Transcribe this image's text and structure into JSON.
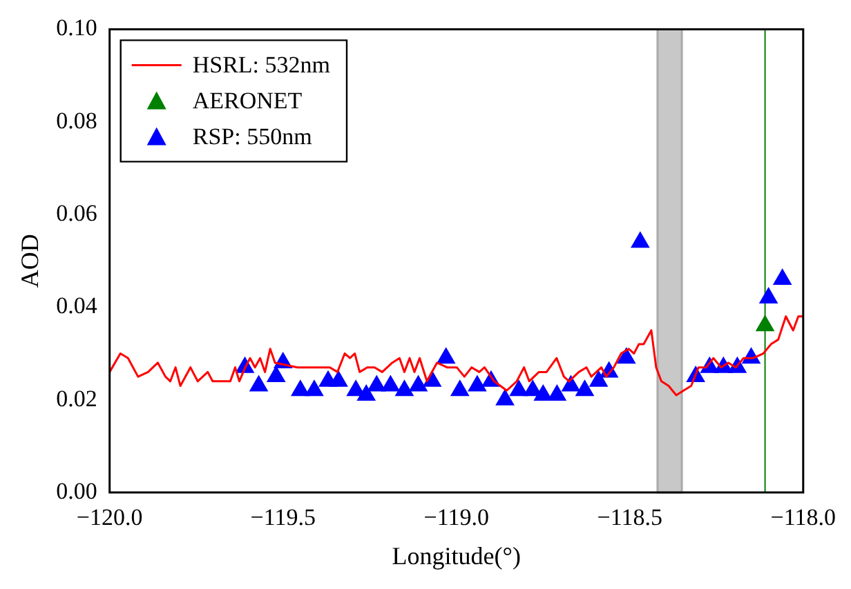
{
  "chart_data": {
    "type": "line",
    "xlabel": "Longitude(°)",
    "ylabel": "AOD",
    "legend": "top left",
    "grid": false,
    "marker": "triangle",
    "xlim": [
      -120,
      -118
    ],
    "ylim": [
      0,
      0.1
    ],
    "xticks": [
      {
        "value": -120,
        "label": "−120.0"
      },
      {
        "value": -119.5,
        "label": "−119.5"
      },
      {
        "value": -119,
        "label": "−119.0"
      },
      {
        "value": -118.5,
        "label": "−118.5"
      },
      {
        "value": -118,
        "label": "−118.0"
      }
    ],
    "yticks": [
      {
        "value": 0,
        "label": "0.00"
      },
      {
        "value": 0.02,
        "label": "0.02"
      },
      {
        "value": 0.04,
        "label": "0.04"
      },
      {
        "value": 0.06,
        "label": "0.06"
      },
      {
        "value": 0.08,
        "label": "0.08"
      },
      {
        "value": 0.1,
        "label": "0.10"
      }
    ],
    "bands": [
      {
        "axis": "x",
        "from": -118.42,
        "to": -118.35,
        "color": "#c8c8c8"
      }
    ],
    "ref_lines": [
      {
        "axis": "x",
        "value": -118.11,
        "color": "#008000"
      }
    ],
    "series": [
      {
        "name": "HSRL: 532nm",
        "color": "#ff0000",
        "marker": "none",
        "x": [
          -120.0,
          -119.969,
          -119.947,
          -119.918,
          -119.889,
          -119.861,
          -119.839,
          -119.825,
          -119.81,
          -119.796,
          -119.767,
          -119.746,
          -119.717,
          -119.703,
          -119.681,
          -119.652,
          -119.638,
          -119.626,
          -119.609,
          -119.595,
          -119.581,
          -119.566,
          -119.552,
          -119.537,
          -119.523,
          -119.458,
          -119.387,
          -119.365,
          -119.343,
          -119.322,
          -119.307,
          -119.293,
          -119.279,
          -119.257,
          -119.236,
          -119.214,
          -119.185,
          -119.164,
          -119.15,
          -119.135,
          -119.121,
          -119.106,
          -119.085,
          -119.056,
          -119.027,
          -118.999,
          -118.977,
          -118.956,
          -118.934,
          -118.919,
          -118.891,
          -118.855,
          -118.826,
          -118.805,
          -118.79,
          -118.762,
          -118.74,
          -118.711,
          -118.69,
          -118.675,
          -118.647,
          -118.625,
          -118.611,
          -118.582,
          -118.568,
          -118.546,
          -118.525,
          -118.503,
          -118.488,
          -118.474,
          -118.46,
          -118.438,
          -118.424,
          -118.409,
          -118.388,
          -118.366,
          -118.345,
          -118.323,
          -118.302,
          -118.28,
          -118.259,
          -118.237,
          -118.216,
          -118.194,
          -118.172,
          -118.144,
          -118.115,
          -118.093,
          -118.072,
          -118.05,
          -118.029,
          -118.014,
          -118.0
        ],
        "values": [
          0.026,
          0.03,
          0.029,
          0.025,
          0.026,
          0.028,
          0.025,
          0.024,
          0.027,
          0.023,
          0.027,
          0.024,
          0.026,
          0.024,
          0.024,
          0.024,
          0.027,
          0.024,
          0.027,
          0.029,
          0.027,
          0.029,
          0.026,
          0.031,
          0.028,
          0.027,
          0.027,
          0.027,
          0.026,
          0.03,
          0.029,
          0.03,
          0.026,
          0.027,
          0.027,
          0.026,
          0.028,
          0.029,
          0.026,
          0.029,
          0.026,
          0.029,
          0.024,
          0.028,
          0.027,
          0.027,
          0.025,
          0.027,
          0.026,
          0.027,
          0.024,
          0.022,
          0.024,
          0.027,
          0.024,
          0.026,
          0.026,
          0.029,
          0.025,
          0.024,
          0.026,
          0.027,
          0.025,
          0.027,
          0.025,
          0.027,
          0.03,
          0.031,
          0.03,
          0.032,
          0.032,
          0.035,
          0.027,
          0.024,
          0.023,
          0.021,
          0.022,
          0.023,
          0.027,
          0.027,
          0.029,
          0.027,
          0.028,
          0.027,
          0.029,
          0.029,
          0.03,
          0.032,
          0.033,
          0.038,
          0.035,
          0.038,
          0.038
        ]
      },
      {
        "name": "AERONET",
        "type": "scatter",
        "color": "#008000",
        "x": [
          -118.11
        ],
        "values": [
          0.036
        ]
      },
      {
        "name": "RSP: 550nm",
        "type": "scatter",
        "color": "#0000ff",
        "x": [
          -119.61,
          -119.57,
          -119.52,
          -119.5,
          -119.45,
          -119.41,
          -119.37,
          -119.34,
          -119.29,
          -119.26,
          -119.23,
          -119.19,
          -119.15,
          -119.11,
          -119.07,
          -119.03,
          -118.99,
          -118.94,
          -118.9,
          -118.86,
          -118.82,
          -118.78,
          -118.75,
          -118.71,
          -118.67,
          -118.63,
          -118.59,
          -118.56,
          -118.51,
          -118.47,
          -118.31,
          -118.27,
          -118.23,
          -118.19,
          -118.15,
          -118.11,
          -118.1,
          -118.06
        ],
        "values": [
          0.027,
          0.023,
          0.025,
          0.028,
          0.022,
          0.022,
          0.024,
          0.024,
          0.022,
          0.021,
          0.023,
          0.023,
          0.022,
          0.023,
          0.024,
          0.029,
          0.022,
          0.023,
          0.024,
          0.02,
          0.022,
          0.022,
          0.021,
          0.021,
          0.023,
          0.022,
          0.024,
          0.026,
          0.029,
          0.054,
          0.025,
          0.027,
          0.027,
          0.027,
          0.029,
          null,
          0.042,
          0.046
        ]
      }
    ]
  }
}
